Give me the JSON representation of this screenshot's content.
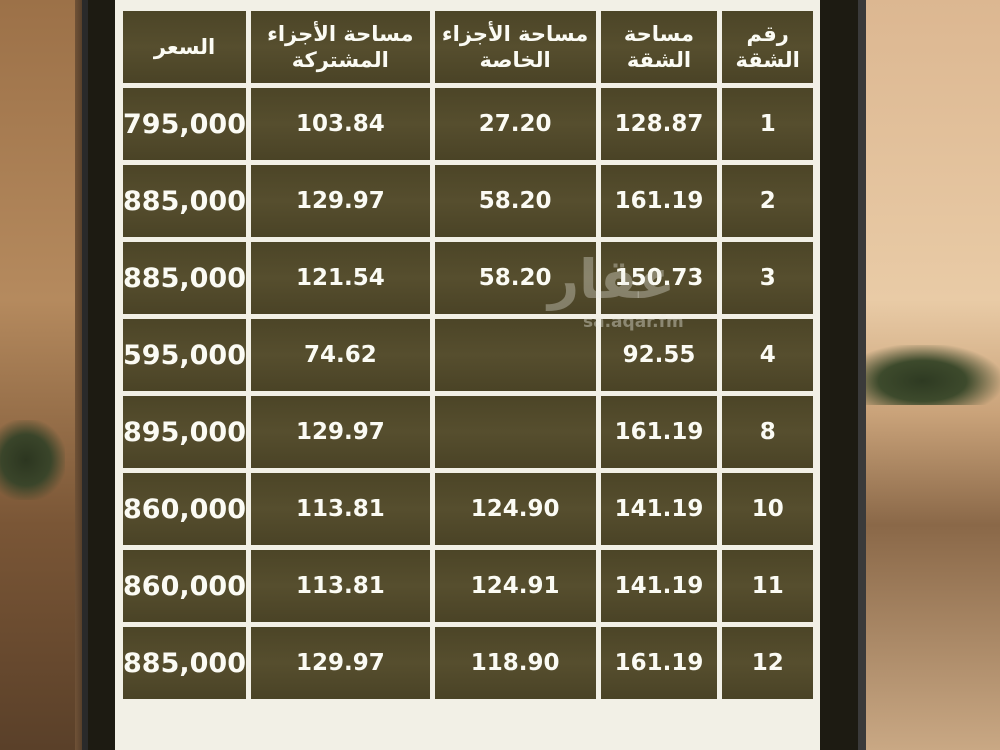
{
  "table": {
    "headers": [
      "رقم الشقة",
      "مساحة الشقة",
      "مساحة الأجزاء الخاصة",
      "مساحة الأجزاء المشتركة",
      "السعر"
    ],
    "rows": [
      [
        "1",
        "128.87",
        "27.20",
        "103.84",
        "795,000"
      ],
      [
        "2",
        "161.19",
        "58.20",
        "129.97",
        "885,000"
      ],
      [
        "3",
        "150.73",
        "58.20",
        "121.54",
        "885,000"
      ],
      [
        "4",
        "92.55",
        "",
        "74.62",
        "595,000"
      ],
      [
        "8",
        "161.19",
        "",
        "129.97",
        "895,000"
      ],
      [
        "10",
        "141.19",
        "124.90",
        "113.81",
        "860,000"
      ],
      [
        "11",
        "141.19",
        "124.91",
        "113.81",
        "860,000"
      ],
      [
        "12",
        "161.19",
        "118.90",
        "129.97",
        "885,000"
      ]
    ]
  },
  "watermark": {
    "logo": "عقار",
    "site": "sa.aqar.fm"
  },
  "colors": {
    "cell": "#524a2b",
    "grid": "#f2f0e6",
    "text": "#fbfbf4"
  }
}
